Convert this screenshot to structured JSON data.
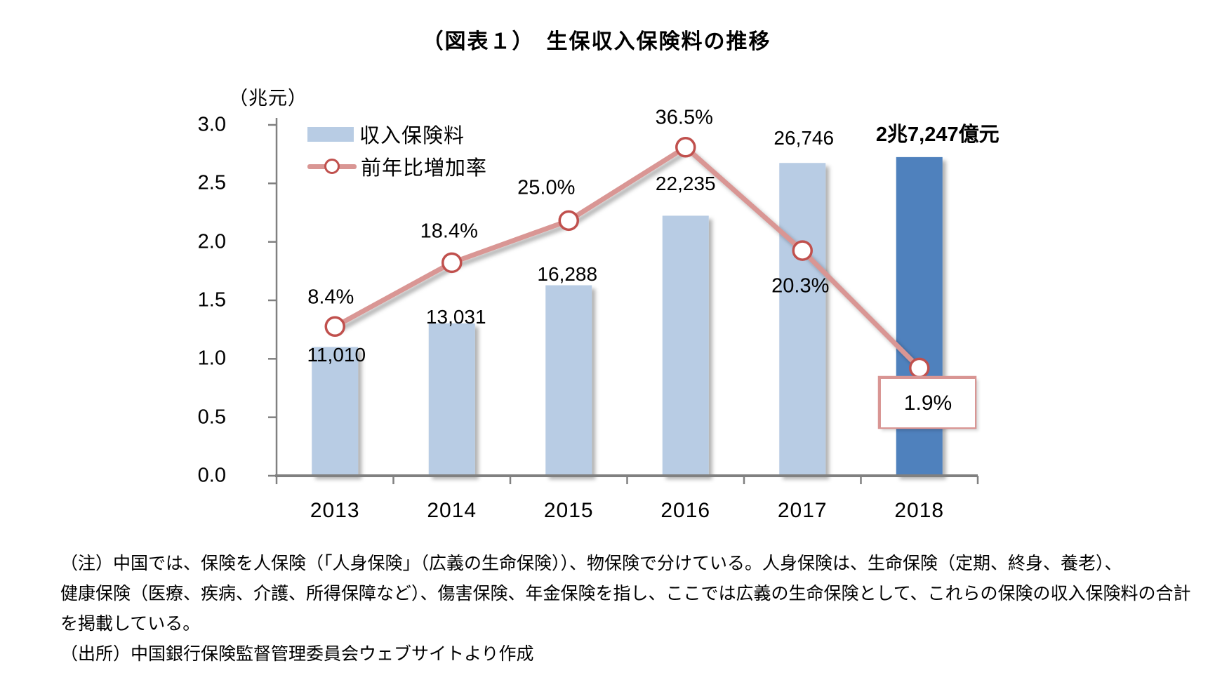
{
  "title": "（図表１）　生保収入保険料の推移",
  "chart_data": {
    "type": "bar+line",
    "title": "（図表１）　生保収入保険料の推移",
    "y_unit_label": "（兆元）",
    "categories": [
      "2013",
      "2014",
      "2015",
      "2016",
      "2017",
      "2018"
    ],
    "series": [
      {
        "name": "収入保険料",
        "type": "bar",
        "unit": "億元",
        "values": [
          11010,
          13031,
          16288,
          22235,
          26746,
          27247
        ],
        "labels": [
          "11,010",
          "13,031",
          "16,288",
          "22,235",
          "26,746",
          "2兆7,247億元"
        ]
      },
      {
        "name": "前年比増加率",
        "type": "line",
        "unit": "%",
        "values": [
          8.4,
          18.4,
          25.0,
          36.5,
          20.3,
          1.9
        ],
        "labels": [
          "8.4%",
          "18.4%",
          "25.0%",
          "36.5%",
          "20.3%",
          "1.9%"
        ]
      }
    ],
    "ylim": [
      0,
      3.0
    ],
    "yticks": [
      "3.0",
      "2.5",
      "2.0",
      "1.5",
      "1.0",
      "0.5",
      "0.0"
    ],
    "y2lim": [
      -15,
      40
    ],
    "grid": false,
    "legend_position": "top-left-inside",
    "highlight_category": "2018",
    "colors": {
      "bar": "#b8cce4",
      "bar_highlight": "#4f81bd",
      "line": "#d99694",
      "marker_stroke": "#c0504d",
      "marker_fill": "#ffffff",
      "axis": "#808080",
      "label_box_border": "#d99694",
      "text": "#000000"
    }
  },
  "notes": {
    "line1": "（注）中国では、保険を人保険（「人身保険」（広義の生命保険））、物保険で分けている。人身保険は、生命保険（定期、終身、養老）、",
    "line2": "健康保険（医療、疾病、介護、所得保障など）、傷害保険、年金保険を指し、ここでは広義の生命保険として、これらの保険の収入保険料の合計",
    "line3": "を掲載している。",
    "line4": "（出所）中国銀行保険監督管理委員会ウェブサイトより作成"
  }
}
